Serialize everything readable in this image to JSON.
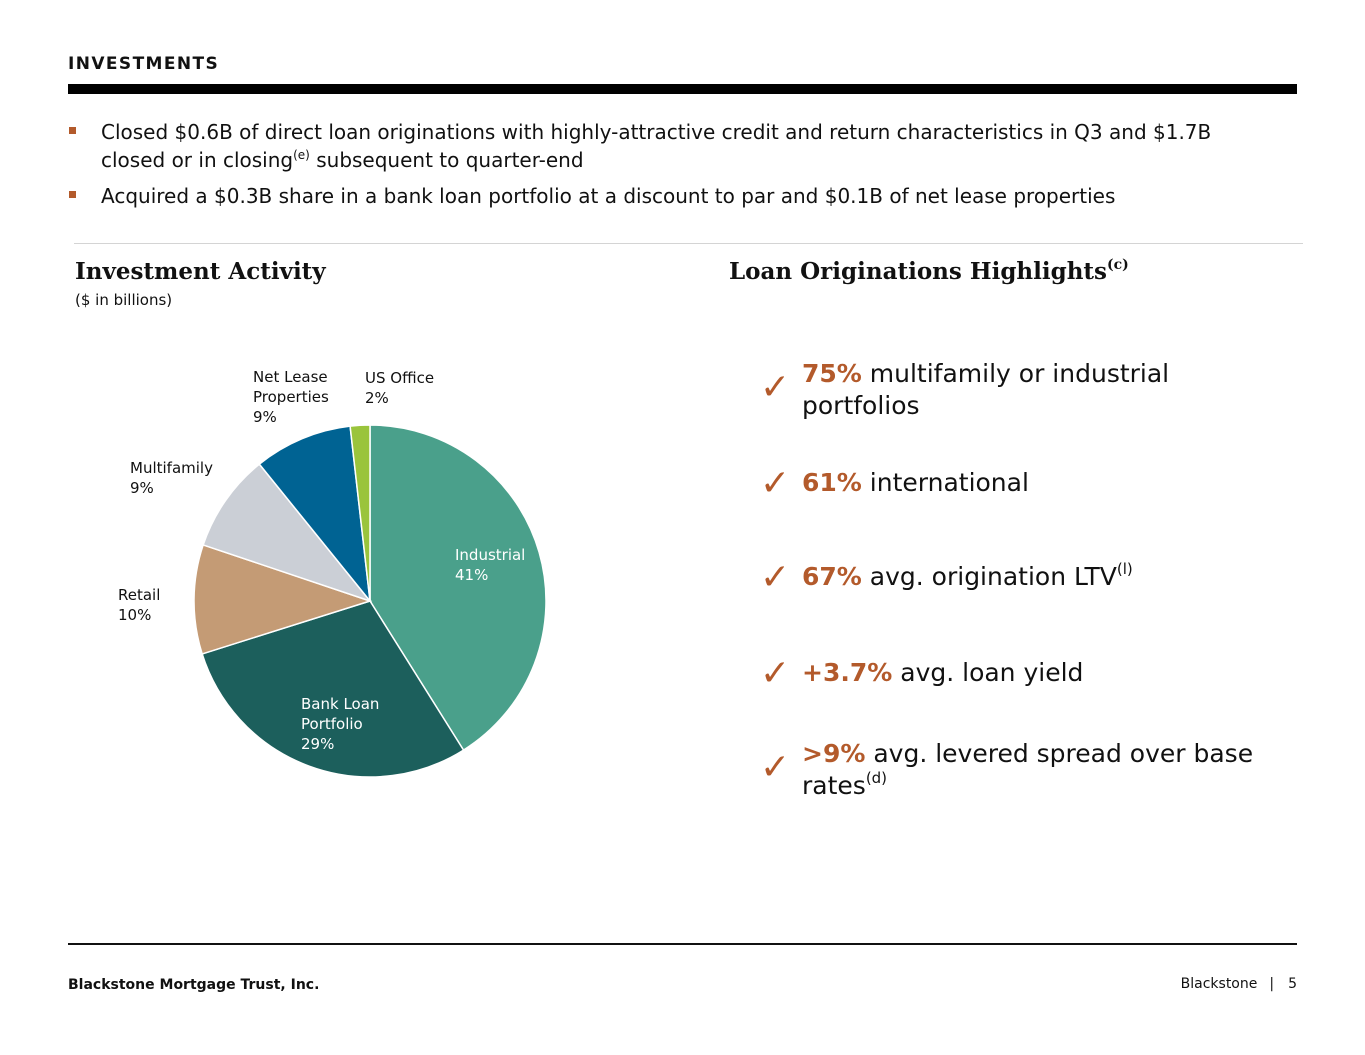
{
  "header": {
    "title": "INVESTMENTS"
  },
  "bullets": [
    {
      "pre": "Closed $0.6B of direct loan originations with highly-attractive credit and return characteristics in Q3 and $1.7B closed or in closing",
      "sup": "(e)",
      "post": " subsequent to quarter-end"
    },
    {
      "pre": "Acquired a $0.3B share in a bank loan portfolio at a discount to par and $0.1B of net lease properties",
      "sup": "",
      "post": ""
    }
  ],
  "investment_activity": {
    "title": "Investment Activity",
    "subtitle": "($ in billions)"
  },
  "chart_data": {
    "type": "pie",
    "title": "Investment Activity",
    "subtitle": "($ in billions)",
    "slices": [
      {
        "name": "Industrial",
        "lines": [
          "Industrial"
        ],
        "pct_label": "41%",
        "value": 41,
        "color": "#4aa08b"
      },
      {
        "name": "Bank Loan Portfolio",
        "lines": [
          "Bank Loan",
          "Portfolio"
        ],
        "pct_label": "29%",
        "value": 29,
        "color": "#1c5f5c"
      },
      {
        "name": "Retail",
        "lines": [
          "Retail"
        ],
        "pct_label": "10%",
        "value": 10,
        "color": "#c49b75"
      },
      {
        "name": "Multifamily",
        "lines": [
          "Multifamily"
        ],
        "pct_label": "9%",
        "value": 9,
        "color": "#cbcfd6"
      },
      {
        "name": "Net Lease Properties",
        "lines": [
          "Net Lease",
          "Properties"
        ],
        "pct_label": "9%",
        "value": 9,
        "color": "#006393"
      },
      {
        "name": "US Office",
        "lines": [
          "US Office"
        ],
        "pct_label": "2%",
        "value": 1.8,
        "color": "#9ac43c"
      }
    ]
  },
  "loan_highlights": {
    "title": "Loan Originations Highlights",
    "title_sup": "(c)",
    "items": [
      {
        "accent": "75%",
        "text": " multifamily or industrial portfolios",
        "sup": ""
      },
      {
        "accent": "61%",
        "text": " international",
        "sup": ""
      },
      {
        "accent": "67%",
        "text": " avg. origination LTV",
        "sup": "(l)"
      },
      {
        "accent": "+3.7%",
        "text": " avg. loan yield",
        "sup": ""
      },
      {
        "accent": ">9%",
        "text": " avg. levered spread over base rates",
        "sup": "(d)"
      }
    ]
  },
  "footer": {
    "company": "Blackstone Mortgage Trust, Inc.",
    "brand": "Blackstone",
    "separator": "|",
    "page": "5"
  },
  "colors": {
    "accent": "#b35a2b"
  }
}
